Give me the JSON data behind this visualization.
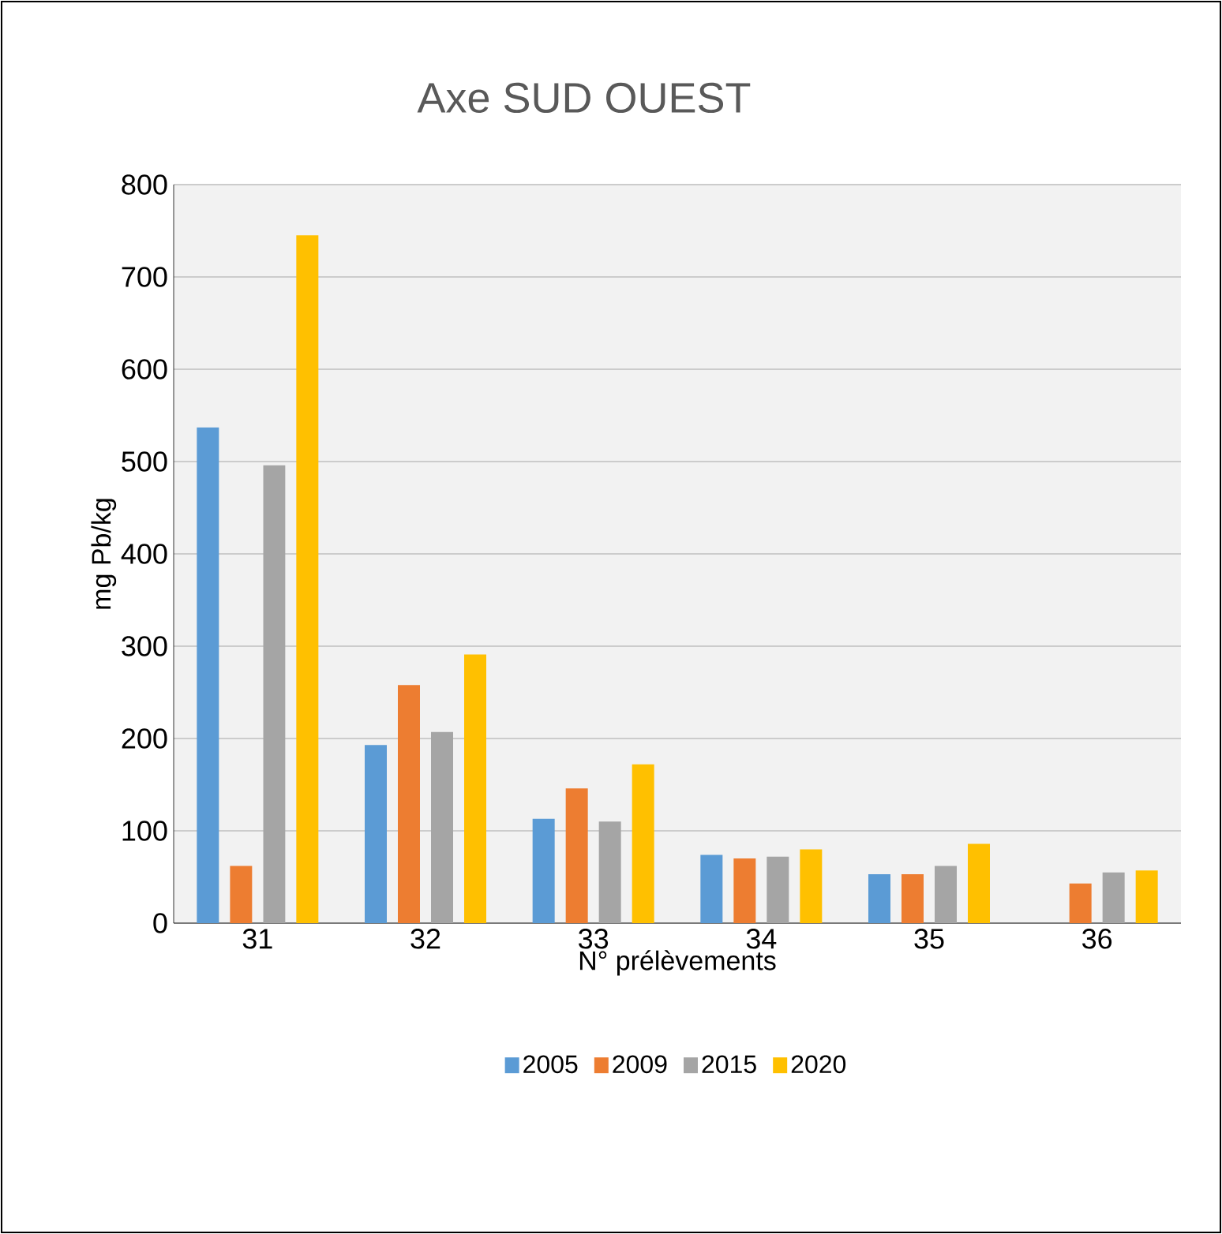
{
  "chart_data": {
    "type": "bar",
    "title": "Axe SUD OUEST",
    "xlabel": "N° prélèvements",
    "ylabel": "mg Pb/kg",
    "categories": [
      "31",
      "32",
      "33",
      "34",
      "35",
      "36"
    ],
    "series": [
      {
        "name": "2005",
        "color": "#5b9bd5",
        "values": [
          537,
          193,
          113,
          74,
          53,
          null
        ]
      },
      {
        "name": "2009",
        "color": "#ed7d31",
        "values": [
          62,
          258,
          146,
          70,
          53,
          43
        ]
      },
      {
        "name": "2015",
        "color": "#a5a5a5",
        "values": [
          496,
          207,
          110,
          72,
          62,
          55
        ]
      },
      {
        "name": "2020",
        "color": "#ffc000",
        "values": [
          745,
          291,
          172,
          80,
          86,
          57
        ]
      }
    ],
    "ylim": [
      0,
      800
    ],
    "yticks": [
      0,
      100,
      200,
      300,
      400,
      500,
      600,
      700,
      800
    ],
    "grid": "y",
    "legend": "bottom"
  }
}
